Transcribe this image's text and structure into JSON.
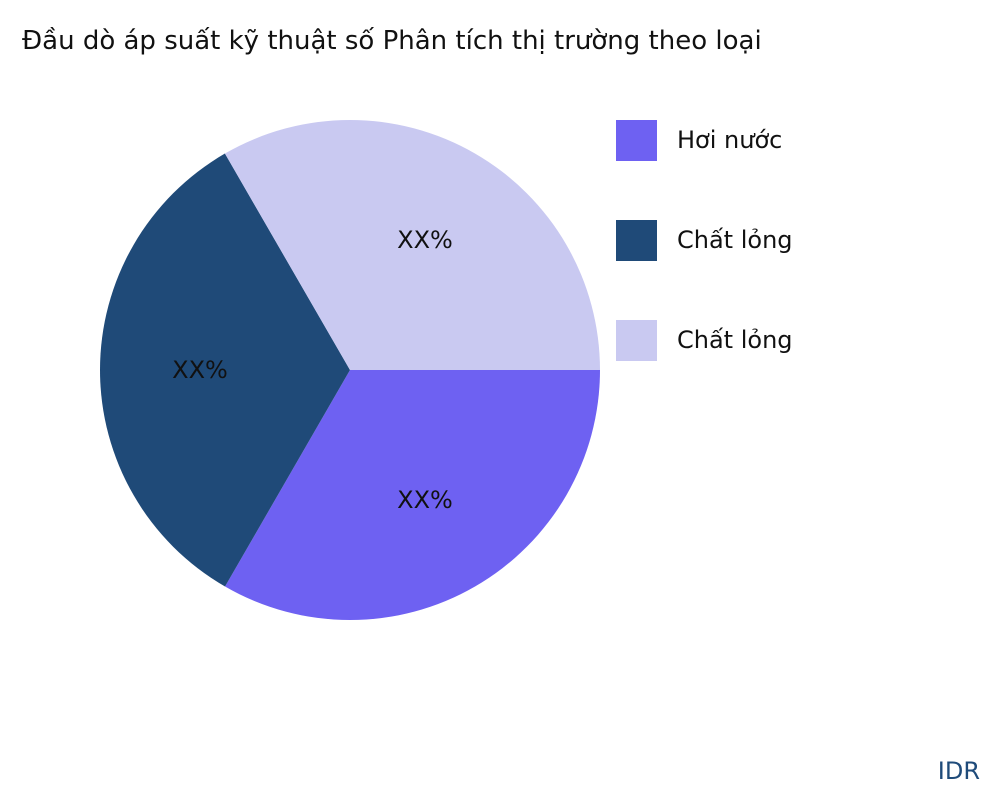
{
  "chart_data": {
    "type": "pie",
    "title": "Đầu dò áp suất kỹ thuật số Phân tích thị trường theo loại",
    "slices": [
      {
        "label": "Hơi nước",
        "value": 33.33,
        "data_label": "XX%",
        "color": "#6e61f2"
      },
      {
        "label": "Chất lỏng",
        "value": 33.33,
        "data_label": "XX%",
        "color": "#1f4a78"
      },
      {
        "label": "Chất lỏng",
        "value": 33.34,
        "data_label": "XX%",
        "color": "#c9c9f1"
      }
    ],
    "start_angle_deg": 0,
    "direction": "clockwise",
    "legend_position": "right"
  },
  "brand": "IDR"
}
